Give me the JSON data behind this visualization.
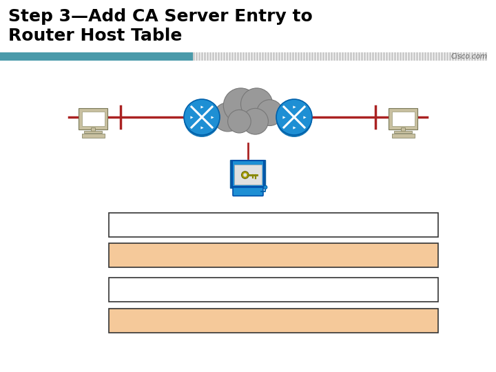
{
  "title_line1": "Step 3—Add CA Server Entry to",
  "title_line2": "Router Host Table",
  "title_fontsize": 18,
  "background_color": "#ffffff",
  "header_teal_color": "#4a9aaa",
  "header_stripe_color": "#c0c0c0",
  "cisco_text": "Cisco.com",
  "cisco_text_color": "#666666",
  "box1_fc": "#ffffff",
  "box1_ec": "#333333",
  "box2_fc": "#f5c99a",
  "box2_ec": "#333333",
  "box3_fc": "#ffffff",
  "box3_ec": "#333333",
  "box4_fc": "#f5c99a",
  "box4_ec": "#333333",
  "net_line_color": "#aa2222",
  "router_fill": "#1e8fd4",
  "router_edge": "#0060aa",
  "cloud_fill": "#999999",
  "cloud_edge": "#777777",
  "pc_body_fill": "#c8c0a0",
  "pc_screen_fill": "#ffffff",
  "ca_fill": "#1e8fd4",
  "ca_screen_fill": "#e0e0e0",
  "key_fill": "#888800"
}
